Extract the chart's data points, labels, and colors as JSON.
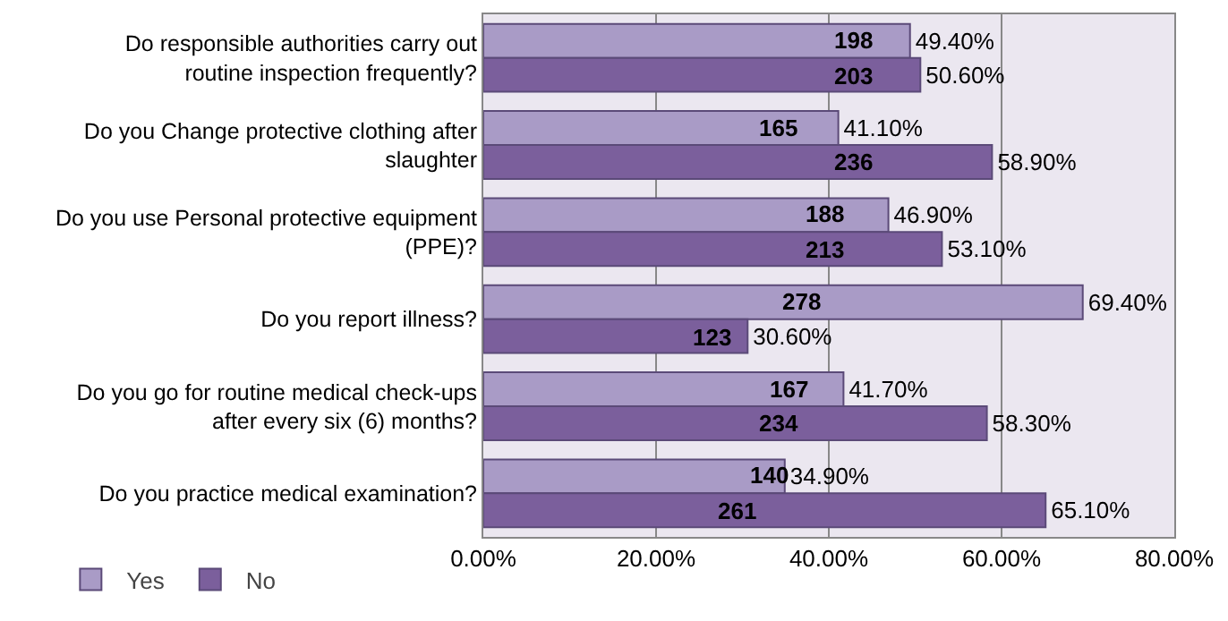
{
  "chart_data": {
    "type": "bar",
    "orientation": "horizontal",
    "categories": [
      "Do responsible authorities carry out routine inspection frequently?",
      "Do you Change protective clothing after slaughter",
      "Do you use Personal protective equipment (PPE)?",
      "Do you report illness?",
      "Do you go for routine medical check-ups after every six (6) months?",
      "Do you practice medical examination?"
    ],
    "series": [
      {
        "name": "Yes",
        "color": "#a99bc6",
        "values": [
          49.4,
          41.1,
          46.9,
          69.4,
          41.7,
          34.9
        ],
        "value_labels": [
          "49.40%",
          "41.10%",
          "46.90%",
          "69.40%",
          "41.70%",
          "34.90%"
        ]
      },
      {
        "name": "No",
        "color": "#7b5f9c",
        "values": [
          50.6,
          58.9,
          53.1,
          30.6,
          58.3,
          65.1
        ],
        "value_labels": [
          "50.60%",
          "58.90%",
          "53.10%",
          "30.60%",
          "58.30%",
          "65.10%"
        ]
      }
    ],
    "annotations": [
      {
        "text": "198",
        "x": 42.8,
        "y": "Do responsible authorities carry out routine inspection frequently?"
      },
      {
        "text": "203",
        "x": 42.8,
        "y": "Do responsible authorities carry out routine inspection frequently?"
      },
      {
        "text": "165",
        "x": 34.2,
        "y": "Do you Change protective clothing after slaughter"
      },
      {
        "text": "236",
        "x": 42.8,
        "y": "Do you Change protective clothing after slaughter"
      },
      {
        "text": "188",
        "x": 39.6,
        "y": "Do you use Personal protective equipment (PPE)?"
      },
      {
        "text": "213",
        "x": 39.6,
        "y": "Do you use Personal protective equipment (PPE)?"
      },
      {
        "text": "278",
        "x": 36.8,
        "y": "Do you report illness?"
      },
      {
        "text": "123",
        "x": 26.6,
        "y": "Do you report illness?"
      },
      {
        "text": "167",
        "x": 35.4,
        "y": "Do you go for routine medical check-ups after every six (6) months?"
      },
      {
        "text": "234",
        "x": 34.2,
        "y": "Do you go for routine medical check-ups after every six (6) months?"
      },
      {
        "text": "140",
        "x": 33.1,
        "y": "Do you practice medical examination?"
      },
      {
        "text": "261",
        "x": 29.5,
        "y": "Do you practice medical examination?"
      }
    ],
    "xlim": [
      0,
      80
    ],
    "xticks": [
      {
        "value": 0,
        "label": "0.00%"
      },
      {
        "value": 20,
        "label": "20.00%"
      },
      {
        "value": 40,
        "label": "40.00%"
      },
      {
        "value": 60,
        "label": "60.00%"
      },
      {
        "value": 80,
        "label": "80.00%"
      }
    ],
    "grid": "x",
    "legend": "bottom left"
  }
}
